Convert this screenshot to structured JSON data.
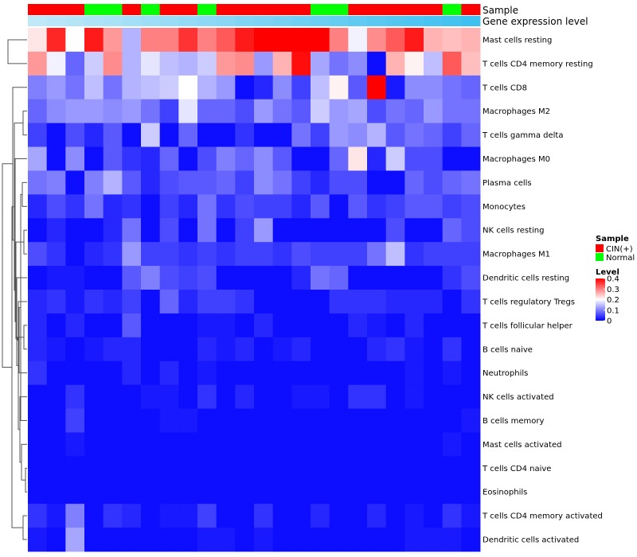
{
  "chart_data": {
    "type": "heatmap",
    "title": "",
    "xlabel": "",
    "ylabel": "",
    "annotation_labels": {
      "sample": "Sample",
      "gene": "Gene expression level"
    },
    "sample_groups": [
      "CIN",
      "CIN",
      "CIN",
      "Normal",
      "Normal",
      "CIN",
      "Normal",
      "CIN",
      "CIN",
      "Normal",
      "CIN",
      "CIN",
      "CIN",
      "CIN",
      "CIN",
      "Normal",
      "Normal",
      "CIN",
      "CIN",
      "CIN",
      "CIN",
      "CIN",
      "Normal",
      "CIN"
    ],
    "gene_level": [
      0.05,
      0.06,
      0.07,
      0.08,
      0.09,
      0.1,
      0.11,
      0.12,
      0.13,
      0.14,
      0.15,
      0.16,
      0.17,
      0.18,
      0.19,
      0.2,
      0.21,
      0.22,
      0.23,
      0.24,
      0.25,
      0.26,
      0.27,
      0.28
    ],
    "rows": [
      {
        "name": "Mast cells resting",
        "values": [
          0.22,
          0.37,
          0.2,
          0.38,
          0.28,
          0.14,
          0.3,
          0.3,
          0.36,
          0.3,
          0.33,
          0.38,
          0.4,
          0.4,
          0.4,
          0.4,
          0.3,
          0.19,
          0.29,
          0.33,
          0.38,
          0.26,
          0.25,
          0.26
        ]
      },
      {
        "name": "T cells CD4 memory resting",
        "values": [
          0.28,
          0.19,
          0.08,
          0.16,
          0.29,
          0.14,
          0.18,
          0.15,
          0.14,
          0.16,
          0.28,
          0.29,
          0.12,
          0.26,
          0.39,
          0.13,
          0.09,
          0.11,
          0.01,
          0.26,
          0.21,
          0.15,
          0.33,
          0.25
        ]
      },
      {
        "name": "T cells CD8",
        "values": [
          0.1,
          0.12,
          0.09,
          0.15,
          0.09,
          0.14,
          0.15,
          0.16,
          0.2,
          0.14,
          0.12,
          0.01,
          0.03,
          0.11,
          0.05,
          0.15,
          0.21,
          0.07,
          0.4,
          0.02,
          0.11,
          0.11,
          0.09,
          0.08
        ]
      },
      {
        "name": "Macrophages M2",
        "values": [
          0.08,
          0.11,
          0.12,
          0.12,
          0.11,
          0.12,
          0.09,
          0.05,
          0.18,
          0.08,
          0.08,
          0.06,
          0.12,
          0.09,
          0.07,
          0.16,
          0.12,
          0.13,
          0.06,
          0.09,
          0.08,
          0.12,
          0.09,
          0.09
        ]
      },
      {
        "name": "T cells gamma delta",
        "values": [
          0.05,
          0.01,
          0.06,
          0.03,
          0.07,
          0.01,
          0.16,
          0.01,
          0.08,
          0.01,
          0.01,
          0.04,
          0.01,
          0.01,
          0.09,
          0.05,
          0.12,
          0.11,
          0.14,
          0.07,
          0.09,
          0.08,
          0.05,
          0.08
        ]
      },
      {
        "name": "Macrophages M0",
        "values": [
          0.13,
          0.01,
          0.11,
          0.01,
          0.07,
          0.04,
          0.03,
          0.08,
          0.01,
          0.06,
          0.1,
          0.08,
          0.11,
          0.07,
          0.01,
          0.01,
          0.08,
          0.22,
          0.03,
          0.16,
          0.06,
          0.06,
          0.01,
          0.01
        ]
      },
      {
        "name": "Plasma cells",
        "values": [
          0.09,
          0.1,
          0.01,
          0.1,
          0.14,
          0.07,
          0.03,
          0.06,
          0.07,
          0.07,
          0.08,
          0.05,
          0.11,
          0.09,
          0.05,
          0.03,
          0.06,
          0.06,
          0.01,
          0.01,
          0.08,
          0.06,
          0.08,
          0.09
        ]
      },
      {
        "name": "Monocytes",
        "values": [
          0.03,
          0.06,
          0.04,
          0.09,
          0.03,
          0.04,
          0.01,
          0.05,
          0.03,
          0.09,
          0.04,
          0.06,
          0.05,
          0.05,
          0.03,
          0.07,
          0.01,
          0.07,
          0.04,
          0.05,
          0.07,
          0.07,
          0.05,
          0.06
        ]
      },
      {
        "name": "NK cells resting",
        "values": [
          0.01,
          0.03,
          0.01,
          0.01,
          0.03,
          0.09,
          0.01,
          0.06,
          0.01,
          0.09,
          0.01,
          0.05,
          0.12,
          0.01,
          0.01,
          0.01,
          0.01,
          0.01,
          0.01,
          0.06,
          0.01,
          0.01,
          0.08,
          0.06
        ]
      },
      {
        "name": "Macrophages M1",
        "values": [
          0.06,
          0.04,
          0.01,
          0.03,
          0.04,
          0.12,
          0.05,
          0.05,
          0.04,
          0.05,
          0.04,
          0.05,
          0.05,
          0.04,
          0.06,
          0.05,
          0.05,
          0.05,
          0.09,
          0.15,
          0.04,
          0.05,
          0.05,
          0.05
        ]
      },
      {
        "name": "Dendritic cells resting",
        "values": [
          0.01,
          0.02,
          0.02,
          0.01,
          0.01,
          0.07,
          0.1,
          0.06,
          0.05,
          0.06,
          0.01,
          0.01,
          0.01,
          0.01,
          0.03,
          0.09,
          0.08,
          0.01,
          0.01,
          0.01,
          0.01,
          0.01,
          0.04,
          0.06
        ]
      },
      {
        "name": "T cells regulatory  Tregs",
        "values": [
          0.03,
          0.04,
          0.02,
          0.04,
          0.03,
          0.05,
          0.01,
          0.08,
          0.03,
          0.05,
          0.05,
          0.04,
          0.01,
          0.01,
          0.01,
          0.01,
          0.04,
          0.04,
          0.04,
          0.03,
          0.03,
          0.03,
          0.01,
          0.04
        ]
      },
      {
        "name": "T cells follicular helper",
        "values": [
          0.03,
          0.01,
          0.03,
          0.01,
          0.01,
          0.07,
          0.01,
          0.01,
          0.01,
          0.02,
          0.02,
          0.01,
          0.03,
          0.01,
          0.01,
          0.01,
          0.01,
          0.03,
          0.02,
          0.01,
          0.03,
          0.01,
          0.01,
          0.01
        ]
      },
      {
        "name": "B cells naive",
        "values": [
          0.03,
          0.02,
          0.01,
          0.02,
          0.03,
          0.03,
          0.01,
          0.01,
          0.01,
          0.03,
          0.02,
          0.03,
          0.01,
          0.02,
          0.03,
          0.01,
          0.01,
          0.01,
          0.03,
          0.04,
          0.02,
          0.01,
          0.04,
          0.01
        ]
      },
      {
        "name": "Neutrophils",
        "values": [
          0.04,
          0.01,
          0.01,
          0.01,
          0.01,
          0.03,
          0.01,
          0.03,
          0.01,
          0.02,
          0.01,
          0.01,
          0.01,
          0.01,
          0.01,
          0.01,
          0.01,
          0.01,
          0.01,
          0.01,
          0.02,
          0.01,
          0.02,
          0.01
        ]
      },
      {
        "name": "NK cells activated",
        "values": [
          0.01,
          0.01,
          0.04,
          0.01,
          0.01,
          0.01,
          0.02,
          0.02,
          0.01,
          0.04,
          0.01,
          0.03,
          0.01,
          0.01,
          0.02,
          0.02,
          0.01,
          0.04,
          0.04,
          0.01,
          0.02,
          0.01,
          0.01,
          0.01
        ]
      },
      {
        "name": "B cells memory",
        "values": [
          0.01,
          0.01,
          0.05,
          0.01,
          0.01,
          0.01,
          0.01,
          0.02,
          0.02,
          0.01,
          0.01,
          0.01,
          0.01,
          0.01,
          0.01,
          0.01,
          0.01,
          0.01,
          0.01,
          0.01,
          0.01,
          0.01,
          0.01,
          0.02
        ]
      },
      {
        "name": "Mast cells activated",
        "values": [
          0.01,
          0.01,
          0.02,
          0.01,
          0.01,
          0.01,
          0.01,
          0.01,
          0.01,
          0.01,
          0.01,
          0.01,
          0.01,
          0.01,
          0.01,
          0.01,
          0.01,
          0.01,
          0.01,
          0.01,
          0.01,
          0.01,
          0.02,
          0.01
        ]
      },
      {
        "name": "T cells CD4 naive",
        "values": [
          0.01,
          0.01,
          0.01,
          0.01,
          0.01,
          0.01,
          0.01,
          0.01,
          0.01,
          0.01,
          0.01,
          0.01,
          0.01,
          0.01,
          0.01,
          0.01,
          0.01,
          0.01,
          0.01,
          0.01,
          0.01,
          0.01,
          0.01,
          0.01
        ]
      },
      {
        "name": "Eosinophils",
        "values": [
          0.01,
          0.01,
          0.01,
          0.01,
          0.01,
          0.01,
          0.01,
          0.01,
          0.01,
          0.01,
          0.01,
          0.01,
          0.01,
          0.01,
          0.01,
          0.01,
          0.01,
          0.01,
          0.01,
          0.01,
          0.01,
          0.01,
          0.01,
          0.01
        ]
      },
      {
        "name": "T cells CD4 memory activated",
        "values": [
          0.04,
          0.02,
          0.1,
          0.01,
          0.04,
          0.03,
          0.01,
          0.02,
          0.02,
          0.05,
          0.01,
          0.01,
          0.04,
          0.01,
          0.01,
          0.03,
          0.01,
          0.01,
          0.03,
          0.01,
          0.02,
          0.01,
          0.04,
          0.02
        ]
      },
      {
        "name": "Dendritic cells activated",
        "values": [
          0.02,
          0.01,
          0.13,
          0.01,
          0.01,
          0.01,
          0.01,
          0.01,
          0.01,
          0.02,
          0.02,
          0.01,
          0.02,
          0.01,
          0.01,
          0.01,
          0.01,
          0.01,
          0.01,
          0.01,
          0.02,
          0.02,
          0.02,
          0.01
        ]
      }
    ],
    "legend": {
      "sample_title": "Sample",
      "sample_items": [
        {
          "label": "CIN(+)",
          "color": "#ff0000"
        },
        {
          "label": "Normal",
          "color": "#00ff00"
        }
      ],
      "level_title": "Level",
      "level_ticks": [
        0.4,
        0.3,
        0.2,
        0.1,
        0
      ],
      "range": [
        0,
        0.4
      ]
    },
    "colors": {
      "low": "#0000ff",
      "mid": "#ffffff",
      "high": "#ff0000",
      "cin": "#ff0000",
      "normal": "#00ff00",
      "gene_light": "#bfe8f8",
      "gene_dark": "#3ec0f0"
    }
  }
}
